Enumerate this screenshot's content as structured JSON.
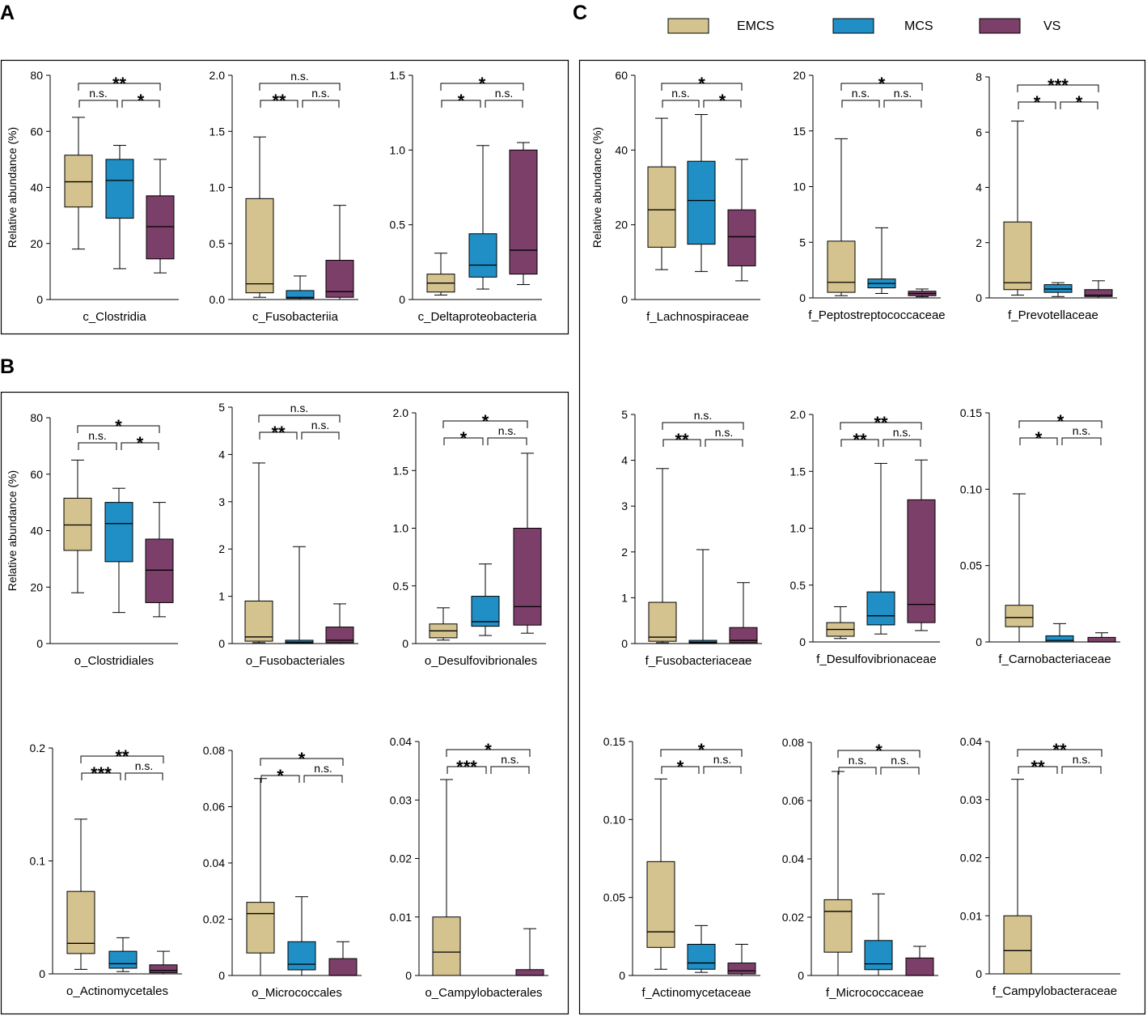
{
  "colors": {
    "EMCS": "#D4C38E",
    "MCS": "#1F8FC6",
    "VS": "#7C3F69",
    "stroke": "#000000"
  },
  "panel_labels": {
    "A": "A",
    "B": "B",
    "C": "C"
  },
  "legend": [
    {
      "name": "EMCS",
      "color": "#D4C38E"
    },
    {
      "name": "MCS",
      "color": "#1F8FC6"
    },
    {
      "name": "VS",
      "color": "#7C3F69"
    }
  ],
  "ylabel": "Relative abundance (%)",
  "chart_data": [
    {
      "id": "c_clostridia",
      "type": "box",
      "xlabel": "c_Clostridia",
      "ylabel": "Relative abundance (%)",
      "ylim": [
        0,
        80
      ],
      "ticks": [
        "0",
        "20",
        "40",
        "60",
        "80"
      ],
      "boxes": [
        {
          "group": "EMCS",
          "min": 18,
          "q1": 33,
          "median": 42,
          "q3": 51.5,
          "max": 65
        },
        {
          "group": "MCS",
          "min": 11,
          "q1": 29,
          "median": 42.5,
          "q3": 50,
          "max": 55
        },
        {
          "group": "VS",
          "min": 9.5,
          "q1": 14.5,
          "median": 26,
          "q3": 37,
          "max": 50
        }
      ],
      "significance": {
        "top": "**",
        "left": "n.s.",
        "right": "*"
      }
    },
    {
      "id": "c_fusobacteriia",
      "type": "box",
      "xlabel": "c_Fusobacteriia",
      "ylabel": "",
      "ylim": [
        0,
        2.0
      ],
      "ticks": [
        "0.0",
        "0.5",
        "1.0",
        "1.5",
        "2.0"
      ],
      "boxes": [
        {
          "group": "EMCS",
          "min": 0.02,
          "q1": 0.06,
          "median": 0.14,
          "q3": 0.9,
          "max": 1.45
        },
        {
          "group": "MCS",
          "min": 0.0,
          "q1": 0.01,
          "median": 0.02,
          "q3": 0.08,
          "max": 0.21
        },
        {
          "group": "VS",
          "min": 0.0,
          "q1": 0.02,
          "median": 0.07,
          "q3": 0.35,
          "max": 0.84
        }
      ],
      "significance": {
        "top": "n.s.",
        "left": "**",
        "right": "n.s."
      }
    },
    {
      "id": "c_deltaproteobacteria",
      "type": "box",
      "xlabel": "c_Deltaproteobacteria",
      "ylabel": "",
      "ylim": [
        0,
        1.5
      ],
      "ticks": [
        "0",
        "0.5",
        "1.0",
        "1.5"
      ],
      "boxes": [
        {
          "group": "EMCS",
          "min": 0.03,
          "q1": 0.05,
          "median": 0.11,
          "q3": 0.17,
          "max": 0.31
        },
        {
          "group": "MCS",
          "min": 0.07,
          "q1": 0.15,
          "median": 0.23,
          "q3": 0.44,
          "max": 1.03
        },
        {
          "group": "VS",
          "min": 0.1,
          "q1": 0.17,
          "median": 0.33,
          "q3": 1.0,
          "max": 1.05
        }
      ],
      "significance": {
        "top": "*",
        "left": "*",
        "right": "n.s."
      }
    },
    {
      "id": "o_clostridiales",
      "type": "box",
      "xlabel": "o_Clostridiales",
      "ylabel": "Relative abundance (%)",
      "ylim": [
        0,
        80
      ],
      "ticks": [
        "0",
        "20",
        "40",
        "60",
        "80"
      ],
      "boxes": [
        {
          "group": "EMCS",
          "min": 18,
          "q1": 33,
          "median": 42,
          "q3": 51.5,
          "max": 65
        },
        {
          "group": "MCS",
          "min": 11,
          "q1": 29,
          "median": 42.5,
          "q3": 50,
          "max": 55
        },
        {
          "group": "VS",
          "min": 9.5,
          "q1": 14.5,
          "median": 26,
          "q3": 37,
          "max": 50
        }
      ],
      "significance": {
        "top": "*",
        "left": "n.s.",
        "right": "*"
      }
    },
    {
      "id": "o_fusobacteriales",
      "type": "box",
      "xlabel": "o_Fusobacteriales",
      "ylabel": "",
      "ylim": [
        0,
        5
      ],
      "ticks": [
        "0",
        "1",
        "2",
        "3",
        "4",
        "5"
      ],
      "boxes": [
        {
          "group": "EMCS",
          "min": 0.02,
          "q1": 0.05,
          "median": 0.14,
          "q3": 0.9,
          "max": 3.82
        },
        {
          "group": "MCS",
          "min": 0.0,
          "q1": 0.01,
          "median": 0.03,
          "q3": 0.07,
          "max": 2.05
        },
        {
          "group": "VS",
          "min": 0.0,
          "q1": 0.02,
          "median": 0.07,
          "q3": 0.35,
          "max": 0.84
        }
      ],
      "significance": {
        "top": "n.s.",
        "left": "**",
        "right": "n.s."
      }
    },
    {
      "id": "o_desulfovibrionales",
      "type": "box",
      "xlabel": "o_Desulfovibrionales",
      "ylabel": "",
      "ylim": [
        0,
        2.0
      ],
      "ticks": [
        "0",
        "0.5",
        "1.0",
        "1.5",
        "2.0"
      ],
      "boxes": [
        {
          "group": "EMCS",
          "min": 0.03,
          "q1": 0.05,
          "median": 0.11,
          "q3": 0.17,
          "max": 0.31
        },
        {
          "group": "MCS",
          "min": 0.07,
          "q1": 0.15,
          "median": 0.19,
          "q3": 0.41,
          "max": 0.69
        },
        {
          "group": "VS",
          "min": 0.09,
          "q1": 0.16,
          "median": 0.32,
          "q3": 1.0,
          "max": 1.65
        }
      ],
      "significance": {
        "top": "*",
        "left": "*",
        "right": "n.s."
      }
    },
    {
      "id": "o_actinomycetales",
      "type": "box",
      "xlabel": "o_Actinomycetales",
      "ylabel": "",
      "ylim": [
        0,
        0.2
      ],
      "ticks": [
        "0",
        "0.1",
        "0.2"
      ],
      "boxes": [
        {
          "group": "EMCS",
          "min": 0.004,
          "q1": 0.018,
          "median": 0.027,
          "q3": 0.073,
          "max": 0.137
        },
        {
          "group": "MCS",
          "min": 0.002,
          "q1": 0.005,
          "median": 0.009,
          "q3": 0.02,
          "max": 0.032
        },
        {
          "group": "VS",
          "min": 0.0,
          "q1": 0.001,
          "median": 0.003,
          "q3": 0.008,
          "max": 0.02
        }
      ],
      "significance": {
        "top": "**",
        "left": "***",
        "right": "n.s."
      }
    },
    {
      "id": "o_micrococcales",
      "type": "box",
      "xlabel": "o_Micrococcales",
      "ylabel": "",
      "ylim": [
        0,
        0.08
      ],
      "ticks": [
        "0",
        "0.02",
        "0.04",
        "0.06",
        "0.08"
      ],
      "boxes": [
        {
          "group": "EMCS",
          "min": 0.0,
          "q1": 0.008,
          "median": 0.022,
          "q3": 0.026,
          "max": 0.07
        },
        {
          "group": "MCS",
          "min": 0.0,
          "q1": 0.002,
          "median": 0.004,
          "q3": 0.012,
          "max": 0.028
        },
        {
          "group": "VS",
          "min": 0.0,
          "q1": 0.0,
          "median": 0.0,
          "q3": 0.006,
          "max": 0.012
        }
      ],
      "significance": {
        "top": "*",
        "left": "*",
        "right": "n.s."
      }
    },
    {
      "id": "o_campylobacterales",
      "type": "box",
      "xlabel": "o_Campylobacterales",
      "ylabel": "",
      "ylim": [
        0,
        0.04
      ],
      "ticks": [
        "0",
        "0.01",
        "0.02",
        "0.03",
        "0.04"
      ],
      "boxes": [
        {
          "group": "EMCS",
          "min": 0.0,
          "q1": 0.0,
          "median": 0.004,
          "q3": 0.01,
          "max": 0.0335
        },
        {
          "group": "MCS",
          "min": 0.0,
          "q1": 0.0,
          "median": 0.0,
          "q3": 0.0,
          "max": 0.0
        },
        {
          "group": "VS",
          "min": 0.0,
          "q1": 0.0,
          "median": 0.0,
          "q3": 0.001,
          "max": 0.008
        }
      ],
      "significance": {
        "top": "*",
        "left": "***",
        "right": "n.s."
      }
    },
    {
      "id": "f_lachnospiraceae",
      "type": "box",
      "xlabel": "f_Lachnospiraceae",
      "ylabel": "Relative abundance (%)",
      "ylim": [
        0,
        60
      ],
      "ticks": [
        "0",
        "20",
        "40",
        "60"
      ],
      "boxes": [
        {
          "group": "EMCS",
          "min": 8,
          "q1": 14,
          "median": 24,
          "q3": 35.5,
          "max": 48.5
        },
        {
          "group": "MCS",
          "min": 7.5,
          "q1": 14.8,
          "median": 26.5,
          "q3": 37,
          "max": 49.5
        },
        {
          "group": "VS",
          "min": 5,
          "q1": 9,
          "median": 16.8,
          "q3": 24,
          "max": 37.5
        }
      ],
      "significance": {
        "top": "*",
        "left": "n.s.",
        "right": "*"
      }
    },
    {
      "id": "f_peptostreptococcaceae",
      "type": "box",
      "xlabel": "f_Peptostreptococcaceae",
      "ylabel": "",
      "ylim": [
        0,
        20
      ],
      "ticks": [
        "0",
        "5",
        "10",
        "15",
        "20"
      ],
      "boxes": [
        {
          "group": "EMCS",
          "min": 0.2,
          "q1": 0.5,
          "median": 1.4,
          "q3": 5.1,
          "max": 14.3
        },
        {
          "group": "MCS",
          "min": 0.4,
          "q1": 0.9,
          "median": 1.3,
          "q3": 1.7,
          "max": 6.3
        },
        {
          "group": "VS",
          "min": 0.1,
          "q1": 0.2,
          "median": 0.4,
          "q3": 0.6,
          "max": 0.8
        }
      ],
      "significance": {
        "top": "*",
        "left": "n.s.",
        "right": "n.s."
      }
    },
    {
      "id": "f_prevotellaceae",
      "type": "box",
      "xlabel": "f_Prevotellaceae",
      "ylabel": "",
      "ylim": [
        0,
        8
      ],
      "ticks": [
        "0",
        "2",
        "4",
        "6",
        "8"
      ],
      "boxes": [
        {
          "group": "EMCS",
          "min": 0.1,
          "q1": 0.3,
          "median": 0.55,
          "q3": 2.75,
          "max": 6.4
        },
        {
          "group": "MCS",
          "min": 0.05,
          "q1": 0.2,
          "median": 0.32,
          "q3": 0.48,
          "max": 0.55
        },
        {
          "group": "VS",
          "min": 0.0,
          "q1": 0.05,
          "median": 0.1,
          "q3": 0.3,
          "max": 0.62
        }
      ],
      "significance": {
        "top": "***",
        "left": "*",
        "right": "*"
      }
    },
    {
      "id": "f_fusobacteriaceae",
      "type": "box",
      "xlabel": "f_Fusobacteriaceae",
      "ylabel": "",
      "ylim": [
        0,
        5
      ],
      "ticks": [
        "0",
        "1",
        "2",
        "3",
        "4",
        "5"
      ],
      "boxes": [
        {
          "group": "EMCS",
          "min": 0.02,
          "q1": 0.05,
          "median": 0.14,
          "q3": 0.9,
          "max": 3.82
        },
        {
          "group": "MCS",
          "min": 0.0,
          "q1": 0.01,
          "median": 0.03,
          "q3": 0.07,
          "max": 2.05
        },
        {
          "group": "VS",
          "min": 0.0,
          "q1": 0.02,
          "median": 0.07,
          "q3": 0.35,
          "max": 1.33
        }
      ],
      "significance": {
        "top": "n.s.",
        "left": "**",
        "right": "n.s."
      }
    },
    {
      "id": "f_desulfovibrionaceae",
      "type": "box",
      "xlabel": "f_Desulfovibrionaceae",
      "ylabel": "",
      "ylim": [
        0,
        2.0
      ],
      "ticks": [
        "0",
        "0.5",
        "1.0",
        "1.5",
        "2.0"
      ],
      "boxes": [
        {
          "group": "EMCS",
          "min": 0.03,
          "q1": 0.05,
          "median": 0.11,
          "q3": 0.17,
          "max": 0.31
        },
        {
          "group": "MCS",
          "min": 0.07,
          "q1": 0.15,
          "median": 0.23,
          "q3": 0.44,
          "max": 1.57
        },
        {
          "group": "VS",
          "min": 0.1,
          "q1": 0.17,
          "median": 0.33,
          "q3": 1.25,
          "max": 1.6
        }
      ],
      "significance": {
        "top": "**",
        "left": "**",
        "right": "n.s."
      }
    },
    {
      "id": "f_carnobacteriaceae",
      "type": "box",
      "xlabel": "f_Carnobacteriaceae",
      "ylabel": "",
      "ylim": [
        0,
        0.15
      ],
      "ticks": [
        "0",
        "0.05",
        "0.10",
        "0.15"
      ],
      "boxes": [
        {
          "group": "EMCS",
          "min": 0.0,
          "q1": 0.01,
          "median": 0.016,
          "q3": 0.024,
          "max": 0.097
        },
        {
          "group": "MCS",
          "min": 0.0,
          "q1": 0.0,
          "median": 0.001,
          "q3": 0.004,
          "max": 0.012
        },
        {
          "group": "VS",
          "min": 0.0,
          "q1": 0.0,
          "median": 0.0,
          "q3": 0.003,
          "max": 0.006
        }
      ],
      "significance": {
        "top": "*",
        "left": "*",
        "right": "n.s."
      }
    },
    {
      "id": "f_actinomycetaceae",
      "type": "box",
      "xlabel": "f_Actinomycetaceae",
      "ylabel": "",
      "ylim": [
        0,
        0.15
      ],
      "ticks": [
        "0",
        "0.05",
        "0.10",
        "0.15"
      ],
      "boxes": [
        {
          "group": "EMCS",
          "min": 0.004,
          "q1": 0.018,
          "median": 0.028,
          "q3": 0.073,
          "max": 0.126
        },
        {
          "group": "MCS",
          "min": 0.002,
          "q1": 0.004,
          "median": 0.008,
          "q3": 0.02,
          "max": 0.032
        },
        {
          "group": "VS",
          "min": 0.0,
          "q1": 0.001,
          "median": 0.003,
          "q3": 0.008,
          "max": 0.02
        }
      ],
      "significance": {
        "top": "*",
        "left": "*",
        "right": "n.s."
      }
    },
    {
      "id": "f_micrococcaceae",
      "type": "box",
      "xlabel": "f_Micrococcaceae",
      "ylabel": "",
      "ylim": [
        0,
        0.08
      ],
      "ticks": [
        "0",
        "0.02",
        "0.04",
        "0.06",
        "0.08"
      ],
      "boxes": [
        {
          "group": "EMCS",
          "min": 0.0,
          "q1": 0.008,
          "median": 0.022,
          "q3": 0.026,
          "max": 0.07
        },
        {
          "group": "MCS",
          "min": 0.0,
          "q1": 0.002,
          "median": 0.004,
          "q3": 0.012,
          "max": 0.028
        },
        {
          "group": "VS",
          "min": 0.0,
          "q1": 0.0,
          "median": 0.0,
          "q3": 0.006,
          "max": 0.01
        }
      ],
      "significance": {
        "top": "*",
        "left": "n.s.",
        "right": "n.s."
      }
    },
    {
      "id": "f_campylobacteraceae",
      "type": "box",
      "xlabel": "f_Campylobacteraceae",
      "ylabel": "",
      "ylim": [
        0,
        0.04
      ],
      "ticks": [
        "0",
        "0.01",
        "0.02",
        "0.03",
        "0.04"
      ],
      "boxes": [
        {
          "group": "EMCS",
          "min": 0.0,
          "q1": 0.0,
          "median": 0.004,
          "q3": 0.01,
          "max": 0.0335
        },
        {
          "group": "MCS",
          "min": 0.0,
          "q1": 0.0,
          "median": 0.0,
          "q3": 0.0,
          "max": 0.0
        },
        {
          "group": "VS",
          "min": 0.0,
          "q1": 0.0,
          "median": 0.0,
          "q3": 0.0,
          "max": 0.0
        }
      ],
      "significance": {
        "top": "**",
        "left": "**",
        "right": "n.s."
      }
    }
  ]
}
